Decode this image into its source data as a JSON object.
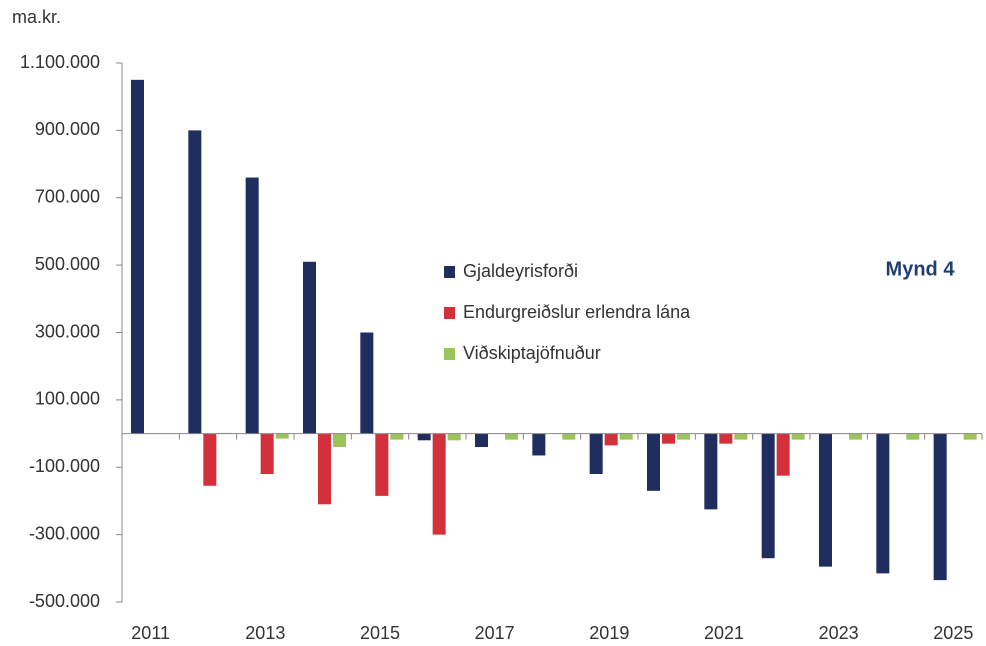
{
  "chart_data": {
    "type": "bar",
    "y_label": "ma.kr.",
    "annotation": "Mynd 4",
    "categories": [
      "2011",
      null,
      "2013",
      null,
      "2015",
      null,
      "2017",
      null,
      "2019",
      null,
      "2021",
      null,
      "2023",
      null,
      "2025"
    ],
    "series": [
      {
        "name": "Gjaldeyrisforði",
        "color": "#1f2d5f",
        "values": [
          1050000,
          900000,
          760000,
          510000,
          300000,
          -20000,
          -40000,
          -65000,
          -120000,
          -170000,
          -225000,
          -370000,
          -395000,
          -415000,
          -435000
        ]
      },
      {
        "name": "Endurgreiðslur erlendra lána",
        "color": "#d3303b",
        "values": [
          0,
          -155000,
          -120000,
          -210000,
          -185000,
          -300000,
          0,
          0,
          -35000,
          -30000,
          -30000,
          -125000,
          0,
          0,
          0
        ]
      },
      {
        "name": "Viðskiptajöfnuður",
        "color": "#9bc45a",
        "values": [
          0,
          2000,
          -15000,
          -40000,
          -18000,
          -20000,
          -18000,
          -18000,
          -18000,
          -18000,
          -18000,
          -18000,
          -18000,
          -18000,
          -18000
        ]
      }
    ],
    "ylim": [
      -500000,
      1100000
    ],
    "yticks": [
      {
        "value": 1100000,
        "label": "1.100.000"
      },
      {
        "value": 900000,
        "label": "900.000"
      },
      {
        "value": 700000,
        "label": "700.000"
      },
      {
        "value": 500000,
        "label": "500.000"
      },
      {
        "value": 300000,
        "label": "300.000"
      },
      {
        "value": 100000,
        "label": "100.000"
      },
      {
        "value": -100000,
        "label": "-100.000"
      },
      {
        "value": -300000,
        "label": "-300.000"
      },
      {
        "value": -500000,
        "label": "-500.000"
      }
    ],
    "legend": "center"
  }
}
